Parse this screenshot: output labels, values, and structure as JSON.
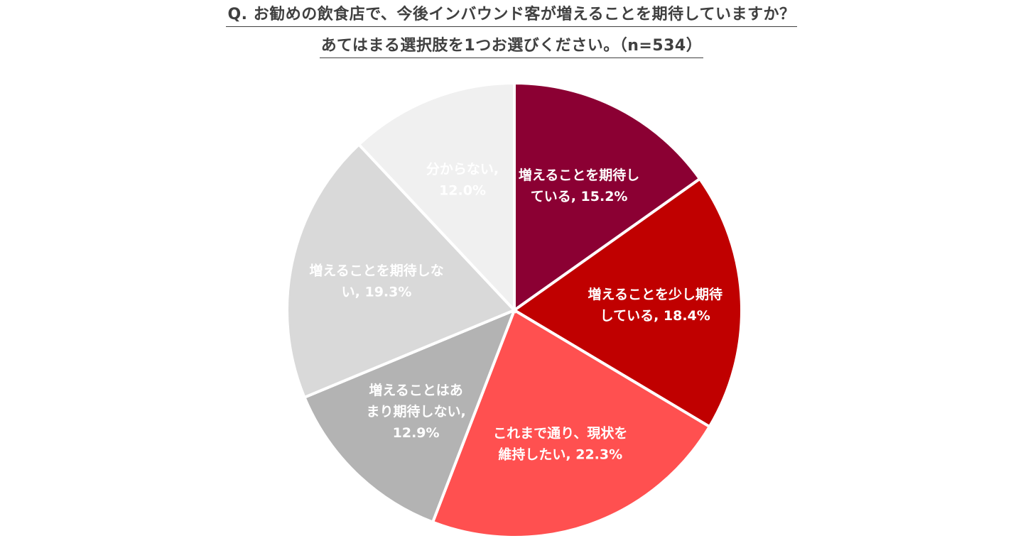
{
  "title": {
    "line1": "Q. お勧めの飲食店で、今後インバウンド客が増えることを期待していますか？",
    "line2": "あてはまる選択肢を1つお選びください。（n=534）"
  },
  "chart_data": {
    "type": "pie",
    "start": "12 o'clock, clockwise",
    "legend": "none (labels inside slices)",
    "slices": [
      {
        "label_lines": [
          "増えることを期待し",
          "ている, 15.2%"
        ],
        "category": "増えることを期待している",
        "value": 15.2,
        "color": "#8b0033",
        "label_color": "#ffffff"
      },
      {
        "label_lines": [
          "増えることを少し期待",
          "している, 18.4%"
        ],
        "category": "増えることを少し期待している",
        "value": 18.4,
        "color": "#c00000",
        "label_color": "#ffffff"
      },
      {
        "label_lines": [
          "これまで通り、現状を",
          "維持したい, 22.3%"
        ],
        "category": "これまで通り、現状を維持したい",
        "value": 22.3,
        "color": "#ff5050",
        "label_color": "#ffffff"
      },
      {
        "label_lines": [
          "増えることはあ",
          "まり期待しない,",
          "12.9%"
        ],
        "category": "増えることはあまり期待しない",
        "value": 12.9,
        "color": "#b3b3b3",
        "label_color": "#ffffff"
      },
      {
        "label_lines": [
          "増えることを期待しな",
          "い, 19.3%"
        ],
        "category": "増えることを期待しない",
        "value": 19.3,
        "color": "#d9d9d9",
        "label_color": "#ffffff"
      },
      {
        "label_lines": [
          "分からない,",
          "12.0%"
        ],
        "category": "分からない",
        "value": 12.0,
        "color": "#f0f0f0",
        "label_color": "#ffffff"
      }
    ]
  }
}
